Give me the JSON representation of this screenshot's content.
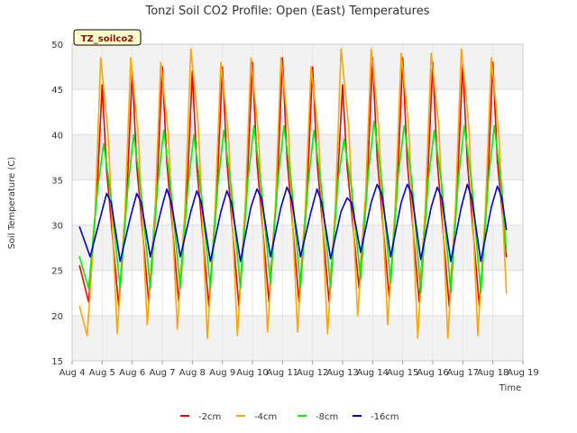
{
  "chart_data": {
    "type": "line",
    "title": "Tonzi Soil CO2 Profile: Open (East) Temperatures",
    "xlabel": "Time",
    "ylabel": "Soil Temperature (C)",
    "badge": "TZ_soilco2",
    "xlim": [
      4,
      19
    ],
    "ylim": [
      15,
      50
    ],
    "x_ticks": [
      4,
      5,
      6,
      7,
      8,
      9,
      10,
      11,
      12,
      13,
      14,
      15,
      16,
      17,
      18,
      19
    ],
    "x_tick_labels": [
      "Aug 4",
      "Aug 5",
      "Aug 6",
      "Aug 7",
      "Aug 8",
      "Aug 9",
      "Aug 10",
      "Aug 11",
      "Aug 12",
      "Aug 13",
      "Aug 14",
      "Aug 15",
      "Aug 16",
      "Aug 17",
      "Aug 18",
      "Aug 19"
    ],
    "y_ticks": [
      15,
      20,
      25,
      30,
      35,
      40,
      45,
      50
    ],
    "grid": true,
    "background_bands": "alternating light gray horizontal bands",
    "legend_position": "bottom-center",
    "series": [
      {
        "name": "-2cm",
        "color": "#ee0000",
        "x": [
          4.25,
          4.55,
          4.85,
          5.0,
          5.15,
          5.55,
          5.85,
          6.0,
          6.15,
          6.55,
          6.85,
          7.0,
          7.15,
          7.55,
          7.85,
          8.0,
          8.15,
          8.55,
          8.85,
          9.0,
          9.15,
          9.55,
          9.85,
          10.0,
          10.15,
          10.55,
          10.85,
          11.0,
          11.15,
          11.55,
          11.85,
          12.0,
          12.15,
          12.55,
          12.85,
          13.0,
          13.15,
          13.55,
          13.85,
          14.0,
          14.15,
          14.55,
          14.85,
          15.0,
          15.15,
          15.55,
          15.85,
          16.0,
          16.15,
          16.55,
          16.85,
          17.0,
          17.15,
          17.55,
          17.85,
          18.0,
          18.15,
          18.45
        ],
        "y": [
          25.5,
          21.5,
          35.0,
          45.5,
          36.0,
          21.0,
          35.5,
          47.0,
          36.5,
          21.5,
          36.0,
          47.5,
          37.0,
          21.5,
          35.5,
          47.0,
          36.5,
          21.0,
          36.0,
          47.5,
          37.0,
          21.0,
          36.5,
          48.0,
          37.0,
          21.5,
          36.0,
          48.5,
          37.5,
          21.5,
          36.0,
          47.5,
          37.0,
          21.5,
          36.0,
          45.5,
          36.5,
          23.0,
          37.0,
          48.5,
          37.5,
          22.0,
          36.5,
          48.5,
          37.0,
          21.5,
          36.5,
          48.0,
          37.0,
          21.0,
          36.5,
          48.0,
          37.0,
          21.0,
          36.0,
          48.0,
          37.0,
          26.5
        ]
      },
      {
        "name": "-4cm",
        "color": "#ffa500",
        "x": [
          4.25,
          4.5,
          4.75,
          4.95,
          5.2,
          5.5,
          5.75,
          5.95,
          6.2,
          6.5,
          6.75,
          6.95,
          7.2,
          7.5,
          7.75,
          7.95,
          8.2,
          8.5,
          8.75,
          8.95,
          9.2,
          9.5,
          9.75,
          9.95,
          10.2,
          10.5,
          10.75,
          10.95,
          11.2,
          11.5,
          11.75,
          11.95,
          12.2,
          12.5,
          12.75,
          12.95,
          13.2,
          13.5,
          13.75,
          13.95,
          14.2,
          14.5,
          14.75,
          14.95,
          15.2,
          15.5,
          15.75,
          15.95,
          16.2,
          16.5,
          16.75,
          16.95,
          17.2,
          17.5,
          17.75,
          17.95,
          18.2,
          18.45
        ],
        "y": [
          21.0,
          17.8,
          30.0,
          48.5,
          40.0,
          18.0,
          30.5,
          48.5,
          40.0,
          19.0,
          31.0,
          48.0,
          40.0,
          18.5,
          31.5,
          49.5,
          41.0,
          17.5,
          31.0,
          48.0,
          40.0,
          17.8,
          31.5,
          48.5,
          40.0,
          18.2,
          31.0,
          48.5,
          40.5,
          18.2,
          31.0,
          47.5,
          40.0,
          18.0,
          31.5,
          49.5,
          41.0,
          20.0,
          32.0,
          49.5,
          41.0,
          19.0,
          32.0,
          49.0,
          41.0,
          17.5,
          32.0,
          49.0,
          41.0,
          17.5,
          31.5,
          49.5,
          41.0,
          17.8,
          31.5,
          48.5,
          40.0,
          22.5
        ]
      },
      {
        "name": "-8cm",
        "color": "#00ee00",
        "x": [
          4.25,
          4.55,
          4.85,
          5.05,
          5.3,
          5.6,
          5.85,
          6.05,
          6.3,
          6.6,
          6.85,
          7.05,
          7.3,
          7.6,
          7.85,
          8.05,
          8.3,
          8.6,
          8.85,
          9.05,
          9.3,
          9.6,
          9.85,
          10.05,
          10.3,
          10.6,
          10.85,
          11.05,
          11.3,
          11.6,
          11.85,
          12.05,
          12.3,
          12.6,
          12.85,
          13.05,
          13.3,
          13.6,
          13.85,
          14.05,
          14.3,
          14.6,
          14.85,
          15.05,
          15.3,
          15.6,
          15.85,
          16.05,
          16.3,
          16.6,
          16.85,
          17.05,
          17.3,
          17.6,
          17.85,
          18.05,
          18.3,
          18.45
        ],
        "y": [
          26.5,
          23.0,
          34.0,
          39.0,
          33.0,
          23.0,
          34.0,
          40.0,
          33.5,
          23.0,
          34.5,
          40.5,
          33.5,
          23.0,
          34.0,
          40.0,
          33.5,
          23.0,
          34.5,
          40.5,
          34.0,
          23.0,
          35.0,
          41.0,
          34.0,
          23.5,
          35.0,
          41.0,
          34.5,
          23.0,
          34.5,
          40.5,
          34.0,
          23.0,
          35.0,
          39.5,
          34.0,
          24.0,
          35.5,
          41.5,
          35.0,
          23.5,
          35.5,
          41.0,
          35.0,
          22.5,
          35.0,
          40.5,
          34.5,
          22.5,
          35.0,
          41.0,
          34.5,
          22.5,
          35.0,
          41.0,
          34.0,
          27.0
        ]
      },
      {
        "name": "-16cm",
        "color": "#0000cc",
        "x": [
          4.25,
          4.6,
          4.95,
          5.15,
          5.3,
          5.6,
          5.95,
          6.15,
          6.3,
          6.6,
          6.95,
          7.15,
          7.3,
          7.6,
          7.95,
          8.15,
          8.3,
          8.6,
          8.95,
          9.15,
          9.3,
          9.6,
          9.95,
          10.15,
          10.3,
          10.6,
          10.95,
          11.15,
          11.3,
          11.6,
          11.95,
          12.15,
          12.3,
          12.6,
          12.95,
          13.15,
          13.3,
          13.6,
          13.95,
          14.15,
          14.3,
          14.6,
          14.95,
          15.15,
          15.3,
          15.6,
          15.95,
          16.15,
          16.3,
          16.6,
          16.95,
          17.15,
          17.3,
          17.6,
          17.95,
          18.15,
          18.3,
          18.45
        ],
        "y": [
          29.8,
          26.5,
          31.0,
          33.5,
          32.5,
          26.0,
          31.0,
          33.5,
          32.5,
          26.5,
          31.5,
          34.0,
          32.5,
          26.5,
          31.5,
          33.8,
          32.5,
          26.0,
          31.5,
          33.8,
          32.5,
          26.0,
          32.0,
          34.0,
          33.0,
          26.5,
          32.0,
          34.2,
          33.0,
          26.5,
          31.5,
          34.0,
          32.5,
          26.3,
          31.5,
          33.0,
          32.5,
          27.0,
          32.5,
          34.5,
          33.5,
          26.5,
          32.5,
          34.5,
          33.5,
          26.2,
          32.0,
          34.2,
          33.0,
          26.0,
          32.0,
          34.5,
          33.0,
          26.0,
          32.0,
          34.3,
          33.0,
          29.5
        ]
      }
    ]
  }
}
